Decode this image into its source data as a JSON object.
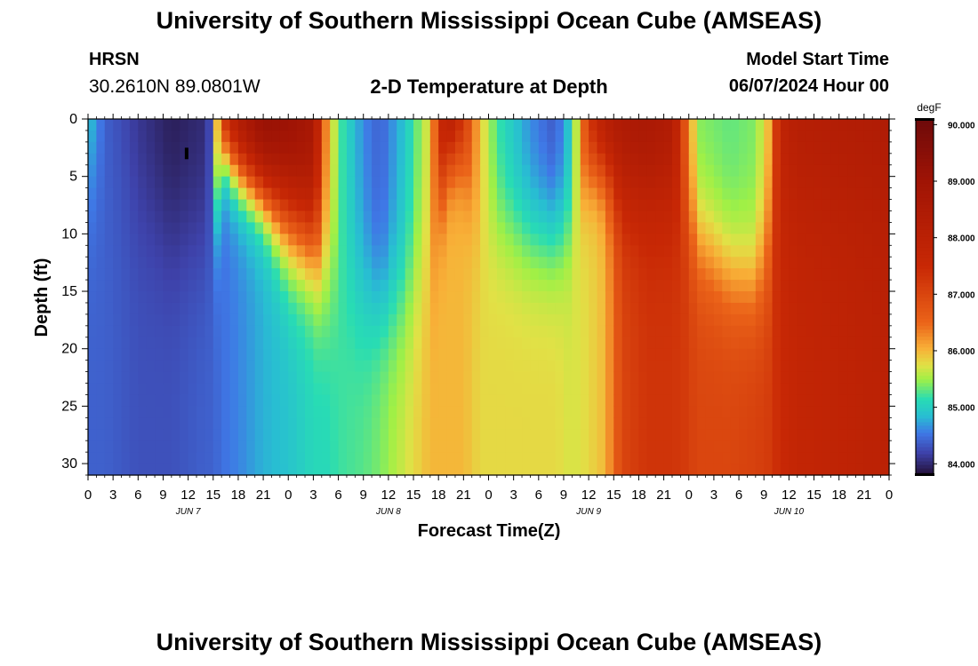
{
  "header": {
    "title": "University of Southern Mississippi Ocean Cube (AMSEAS)",
    "station": "HRSN",
    "coords": "30.2610N  89.0801W",
    "model_start_label": "Model Start Time",
    "model_start_value": "06/07/2024 Hour 00"
  },
  "footer": {
    "title": "University of Southern Mississippi Ocean Cube (AMSEAS)"
  },
  "chart_data": {
    "type": "heatmap",
    "title": "2-D Temperature at Depth",
    "xlabel": "Forecast Time(Z)",
    "ylabel": "Depth (ft)",
    "x_range_hours": [
      0,
      96
    ],
    "y_range_ft": [
      0,
      31
    ],
    "x_ticks": [
      "0",
      "3",
      "6",
      "9",
      "12",
      "15",
      "18",
      "21",
      "0",
      "3",
      "6",
      "9",
      "12",
      "15",
      "18",
      "21",
      "0",
      "3",
      "6",
      "9",
      "12",
      "15",
      "18",
      "21",
      "0",
      "3",
      "6",
      "9",
      "12",
      "15",
      "18",
      "21",
      "0"
    ],
    "y_ticks": [
      "0",
      "5",
      "10",
      "15",
      "20",
      "25",
      "30"
    ],
    "date_labels": [
      {
        "label": "JUN 7",
        "hour": 12
      },
      {
        "label": "JUN 8",
        "hour": 36
      },
      {
        "label": "JUN 9",
        "hour": 60
      },
      {
        "label": "JUN 10",
        "hour": 84
      }
    ],
    "colorbar": {
      "unit": "degF",
      "min": 83.8,
      "max": 90.1,
      "ticks": [
        "84.000",
        "85.000",
        "86.000",
        "87.000",
        "88.000",
        "89.000",
        "90.000"
      ]
    },
    "profiles": [
      {
        "hour": 0,
        "top": 85.2,
        "bottom": 84.4,
        "thermocline": 3,
        "width": 4
      },
      {
        "hour": 2,
        "top": 84.4,
        "bottom": 84.4,
        "thermocline": 3,
        "width": 4
      },
      {
        "hour": 6,
        "top": 84.1,
        "bottom": 84.3,
        "thermocline": 8,
        "width": 4
      },
      {
        "hour": 10,
        "top": 83.9,
        "bottom": 84.3,
        "thermocline": 10,
        "width": 4
      },
      {
        "hour": 14,
        "top": 84.0,
        "bottom": 84.4,
        "thermocline": 10,
        "width": 4
      },
      {
        "hour": 15,
        "top": 84.4,
        "bottom": 84.4,
        "thermocline": 10,
        "width": 4
      },
      {
        "hour": 16,
        "top": 88.0,
        "bottom": 84.5,
        "thermocline": 2,
        "width": 2
      },
      {
        "hour": 18,
        "top": 88.8,
        "bottom": 84.6,
        "thermocline": 4,
        "width": 2
      },
      {
        "hour": 21,
        "top": 89.4,
        "bottom": 84.8,
        "thermocline": 6,
        "width": 2
      },
      {
        "hour": 24,
        "top": 89.4,
        "bottom": 84.9,
        "thermocline": 8,
        "width": 3
      },
      {
        "hour": 27,
        "top": 88.8,
        "bottom": 85.1,
        "thermocline": 10,
        "width": 3
      },
      {
        "hour": 28.5,
        "top": 86.4,
        "bottom": 85.1,
        "thermocline": 12,
        "width": 4
      },
      {
        "hour": 30,
        "top": 85.3,
        "bottom": 85.2,
        "thermocline": 13,
        "width": 4
      },
      {
        "hour": 33,
        "top": 84.6,
        "bottom": 85.3,
        "thermocline": 15,
        "width": 4
      },
      {
        "hour": 35,
        "top": 84.4,
        "bottom": 85.4,
        "thermocline": 16,
        "width": 3
      },
      {
        "hour": 38,
        "top": 84.9,
        "bottom": 85.7,
        "thermocline": 15,
        "width": 4
      },
      {
        "hour": 41,
        "top": 85.8,
        "bottom": 86.0,
        "thermocline": 12,
        "width": 4
      },
      {
        "hour": 43,
        "top": 88.6,
        "bottom": 86.0,
        "thermocline": 3,
        "width": 2
      },
      {
        "hour": 45,
        "top": 87.5,
        "bottom": 86.0,
        "thermocline": 3,
        "width": 2
      },
      {
        "hour": 47,
        "top": 85.9,
        "bottom": 85.8,
        "thermocline": 8,
        "width": 4
      },
      {
        "hour": 49,
        "top": 85.2,
        "bottom": 85.8,
        "thermocline": 9,
        "width": 3
      },
      {
        "hour": 53,
        "top": 84.6,
        "bottom": 85.8,
        "thermocline": 10,
        "width": 3
      },
      {
        "hour": 56,
        "top": 84.3,
        "bottom": 85.8,
        "thermocline": 10,
        "width": 3
      },
      {
        "hour": 58,
        "top": 85.0,
        "bottom": 85.7,
        "thermocline": 9,
        "width": 3
      },
      {
        "hour": 60,
        "top": 87.4,
        "bottom": 85.8,
        "thermocline": 4,
        "width": 2
      },
      {
        "hour": 62,
        "top": 88.4,
        "bottom": 86.0,
        "thermocline": 4,
        "width": 2
      },
      {
        "hour": 64,
        "top": 88.7,
        "bottom": 87.0,
        "thermocline": 6,
        "width": 3
      },
      {
        "hour": 67,
        "top": 88.8,
        "bottom": 87.3,
        "thermocline": 6,
        "width": 3
      },
      {
        "hour": 70,
        "top": 88.5,
        "bottom": 87.3,
        "thermocline": 6,
        "width": 3
      },
      {
        "hour": 71.5,
        "top": 86.8,
        "bottom": 87.2,
        "thermocline": 8,
        "width": 3
      },
      {
        "hour": 73,
        "top": 85.4,
        "bottom": 87.0,
        "thermocline": 11,
        "width": 3
      },
      {
        "hour": 77,
        "top": 85.3,
        "bottom": 87.0,
        "thermocline": 14,
        "width": 3
      },
      {
        "hour": 80,
        "top": 85.4,
        "bottom": 87.1,
        "thermocline": 15,
        "width": 3
      },
      {
        "hour": 81.5,
        "top": 85.9,
        "bottom": 87.2,
        "thermocline": 12,
        "width": 4
      },
      {
        "hour": 83,
        "top": 87.9,
        "bottom": 87.5,
        "thermocline": 6,
        "width": 4
      },
      {
        "hour": 85,
        "top": 88.3,
        "bottom": 87.7,
        "thermocline": 6,
        "width": 4
      },
      {
        "hour": 96,
        "top": 88.5,
        "bottom": 88.0,
        "thermocline": 6,
        "width": 4
      }
    ]
  }
}
